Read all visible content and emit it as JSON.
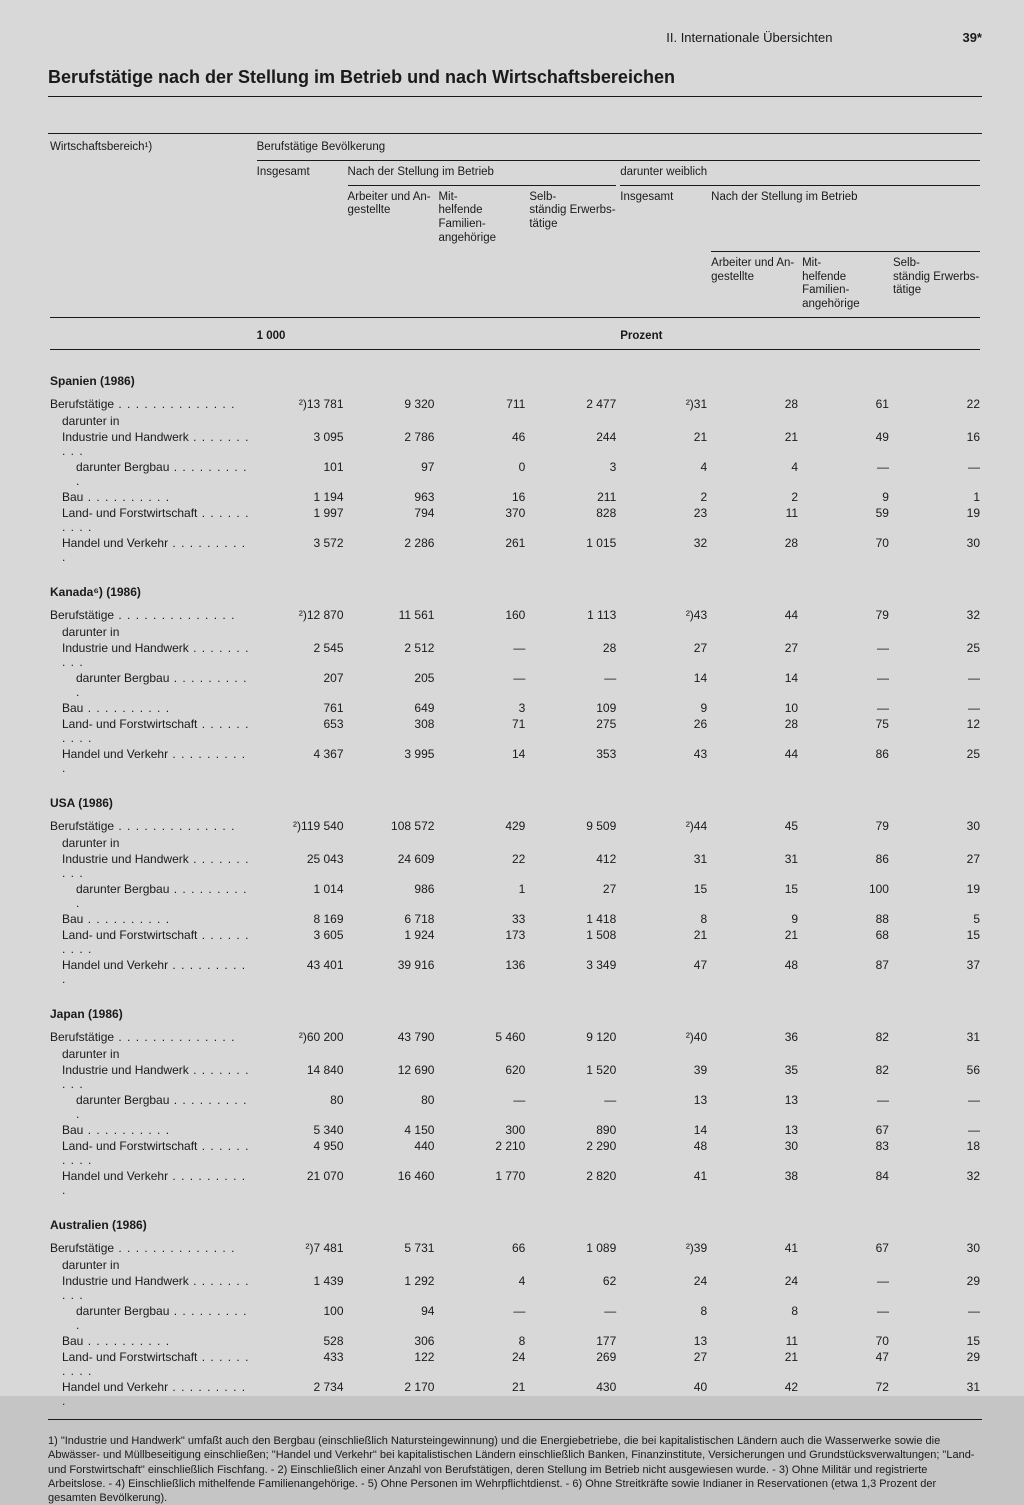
{
  "header": {
    "section": "II. Internationale Übersichten",
    "pagenum": "39*"
  },
  "title": "Berufstätige nach der Stellung im Betrieb und nach Wirtschaftsbereichen",
  "columns": {
    "c0": "Wirtschaftsbereich¹)",
    "group_top": "Berufstätige Bevölkerung",
    "c1": "Insgesamt",
    "group_a": "Nach der Stellung im Betrieb",
    "c2a": "Arbeiter und An-",
    "c2b": "gestellte",
    "c3a": "Mit-",
    "c3b": "helfende Familien-",
    "c3c": "angehörige",
    "c4a": "Selb-",
    "c4b": "ständig Erwerbs-",
    "c4c": "tätige",
    "group_w": "darunter weiblich",
    "c5": "Insgesamt",
    "group_b": "Nach der Stellung im Betrieb",
    "c6a": "Arbeiter und An-",
    "c6b": "gestellte",
    "c7a": "Mit-",
    "c7b": "helfende Familien-",
    "c7c": "angehörige",
    "c8a": "Selb-",
    "c8b": "ständig Erwerbs-",
    "c8c": "tätige",
    "unit1": "1 000",
    "unit2": "Prozent",
    "r_beruf": "Berufstätige",
    "r_darunter": "darunter in",
    "r_ind": "Industrie und Handwerk",
    "r_berg": "darunter Bergbau",
    "r_bau": "Bau",
    "r_land": "Land- und Forstwirtschaft",
    "r_handel": "Handel und Verkehr"
  },
  "sections": [
    {
      "name": "Spanien (1986)",
      "rows": [
        [
          "Berufstätige",
          "²)13 781",
          "9 320",
          "711",
          "2 477",
          "²)31",
          "28",
          "61",
          "22"
        ],
        [
          "Industrie und Handwerk",
          "3 095",
          "2 786",
          "46",
          "244",
          "21",
          "21",
          "49",
          "16"
        ],
        [
          "darunter Bergbau",
          "101",
          "97",
          "0",
          "3",
          "4",
          "4",
          "—",
          "—"
        ],
        [
          "Bau",
          "1 194",
          "963",
          "16",
          "211",
          "2",
          "2",
          "9",
          "1"
        ],
        [
          "Land- und Forstwirtschaft",
          "1 997",
          "794",
          "370",
          "828",
          "23",
          "11",
          "59",
          "19"
        ],
        [
          "Handel und Verkehr",
          "3 572",
          "2 286",
          "261",
          "1 015",
          "32",
          "28",
          "70",
          "30"
        ]
      ]
    },
    {
      "name": "Kanada⁶) (1986)",
      "rows": [
        [
          "Berufstätige",
          "²)12 870",
          "11 561",
          "160",
          "1 113",
          "²)43",
          "44",
          "79",
          "32"
        ],
        [
          "Industrie und Handwerk",
          "2 545",
          "2 512",
          "—",
          "28",
          "27",
          "27",
          "—",
          "25"
        ],
        [
          "darunter Bergbau",
          "207",
          "205",
          "—",
          "—",
          "14",
          "14",
          "—",
          "—"
        ],
        [
          "Bau",
          "761",
          "649",
          "3",
          "109",
          "9",
          "10",
          "—",
          "—"
        ],
        [
          "Land- und Forstwirtschaft",
          "653",
          "308",
          "71",
          "275",
          "26",
          "28",
          "75",
          "12"
        ],
        [
          "Handel und Verkehr",
          "4 367",
          "3 995",
          "14",
          "353",
          "43",
          "44",
          "86",
          "25"
        ]
      ]
    },
    {
      "name": "USA (1986)",
      "rows": [
        [
          "Berufstätige",
          "²)119 540",
          "108 572",
          "429",
          "9 509",
          "²)44",
          "45",
          "79",
          "30"
        ],
        [
          "Industrie und Handwerk",
          "25 043",
          "24 609",
          "22",
          "412",
          "31",
          "31",
          "86",
          "27"
        ],
        [
          "darunter Bergbau",
          "1 014",
          "986",
          "1",
          "27",
          "15",
          "15",
          "100",
          "19"
        ],
        [
          "Bau",
          "8 169",
          "6 718",
          "33",
          "1 418",
          "8",
          "9",
          "88",
          "5"
        ],
        [
          "Land- und Forstwirtschaft",
          "3 605",
          "1 924",
          "173",
          "1 508",
          "21",
          "21",
          "68",
          "15"
        ],
        [
          "Handel und Verkehr",
          "43 401",
          "39 916",
          "136",
          "3 349",
          "47",
          "48",
          "87",
          "37"
        ]
      ]
    },
    {
      "name": "Japan (1986)",
      "rows": [
        [
          "Berufstätige",
          "²)60 200",
          "43 790",
          "5 460",
          "9 120",
          "²)40",
          "36",
          "82",
          "31"
        ],
        [
          "Industrie und Handwerk",
          "14 840",
          "12 690",
          "620",
          "1 520",
          "39",
          "35",
          "82",
          "56"
        ],
        [
          "darunter Bergbau",
          "80",
          "80",
          "—",
          "—",
          "13",
          "13",
          "—",
          "—"
        ],
        [
          "Bau",
          "5 340",
          "4 150",
          "300",
          "890",
          "14",
          "13",
          "67",
          "—"
        ],
        [
          "Land- und Forstwirtschaft",
          "4 950",
          "440",
          "2 210",
          "2 290",
          "48",
          "30",
          "83",
          "18"
        ],
        [
          "Handel und Verkehr",
          "21 070",
          "16 460",
          "1 770",
          "2 820",
          "41",
          "38",
          "84",
          "32"
        ]
      ]
    },
    {
      "name": "Australien (1986)",
      "rows": [
        [
          "Berufstätige",
          "²)7 481",
          "5 731",
          "66",
          "1 089",
          "²)39",
          "41",
          "67",
          "30"
        ],
        [
          "Industrie und Handwerk",
          "1 439",
          "1 292",
          "4",
          "62",
          "24",
          "24",
          "—",
          "29"
        ],
        [
          "darunter Bergbau",
          "100",
          "94",
          "—",
          "—",
          "8",
          "8",
          "—",
          "—"
        ],
        [
          "Bau",
          "528",
          "306",
          "8",
          "177",
          "13",
          "11",
          "70",
          "15"
        ],
        [
          "Land- und Forstwirtschaft",
          "433",
          "122",
          "24",
          "269",
          "27",
          "21",
          "47",
          "29"
        ],
        [
          "Handel und Verkehr",
          "2 734",
          "2 170",
          "21",
          "430",
          "40",
          "42",
          "72",
          "31"
        ]
      ]
    }
  ],
  "footnote": "1) \"Industrie und Handwerk\" umfaßt auch den Bergbau (einschließlich Natursteingewinnung) und die Energiebetriebe, die bei kapitalistischen Ländern auch die Wasserwerke sowie die Abwässer- und Müllbeseitigung einschließen; \"Handel und Verkehr\" bei kapitalistischen Ländern einschließlich Banken, Finanzinstitute, Versicherungen und Grundstücksverwaltungen; \"Land- und Forstwirtschaft\" einschließlich Fischfang. - 2) Einschließlich einer Anzahl von Berufstätigen, deren Stellung im Betrieb nicht ausgewiesen wurde. - 3) Ohne Militär und registrierte Arbeitslose. - 4) Einschließlich mithelfende Familienangehörige. - 5) Ohne Personen im Wehrpflichtdienst. - 6) Ohne Streitkräfte sowie Indianer in Reservationen (etwa 1,3 Prozent der gesamten Bevölkerung)."
}
